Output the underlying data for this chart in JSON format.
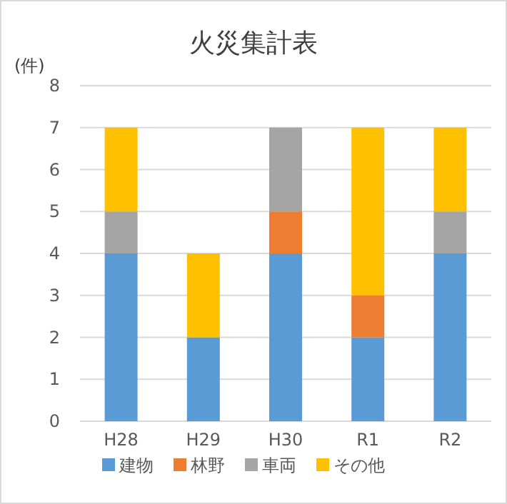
{
  "chart_data": {
    "type": "bar",
    "stacked": true,
    "title": "火災集計表",
    "ylabel": "(件)",
    "categories": [
      "H28",
      "H29",
      "H30",
      "R1",
      "R2"
    ],
    "series": [
      {
        "name": "建物",
        "color": "#5b9bd5",
        "values": [
          4,
          2,
          4,
          2,
          4
        ]
      },
      {
        "name": "林野",
        "color": "#ed7d31",
        "values": [
          0,
          0,
          1,
          1,
          0
        ]
      },
      {
        "name": "車両",
        "color": "#a5a5a5",
        "values": [
          1,
          0,
          2,
          0,
          1
        ]
      },
      {
        "name": "その他",
        "color": "#ffc000",
        "values": [
          2,
          2,
          0,
          4,
          2
        ]
      }
    ],
    "ylim": [
      0,
      8
    ],
    "yticks": [
      0,
      1,
      2,
      3,
      4,
      5,
      6,
      7,
      8
    ],
    "grid": "y",
    "legend": "bottom"
  }
}
